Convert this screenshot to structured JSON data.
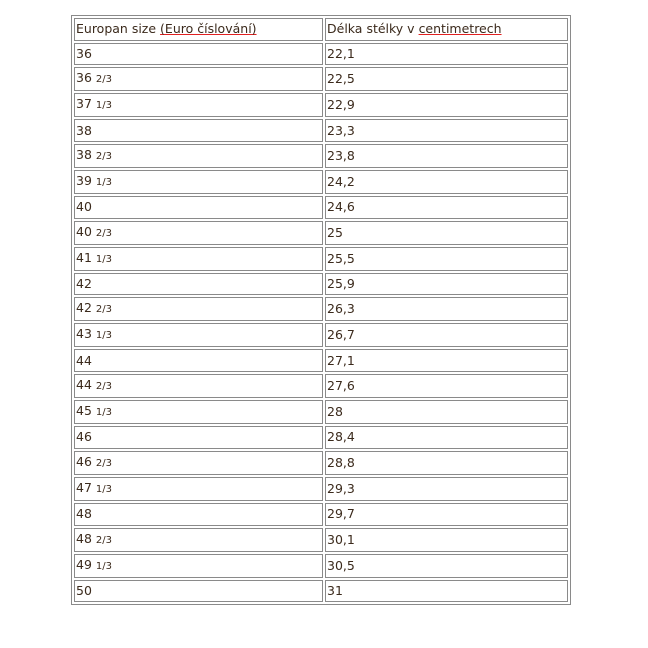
{
  "header": {
    "col1_text": "Europan size ",
    "col1_link": "(Euro číslování)",
    "col2_text": "Délka stélky v ",
    "col2_link": "centimetrech"
  },
  "rows": [
    {
      "size": "36",
      "frac": "",
      "cm": "22,1"
    },
    {
      "size": "36",
      "frac": "2/3",
      "cm": "22,5"
    },
    {
      "size": "37",
      "frac": "1/3",
      "cm": "22,9"
    },
    {
      "size": "38",
      "frac": "",
      "cm": "23,3"
    },
    {
      "size": "38",
      "frac": "2/3",
      "cm": "23,8"
    },
    {
      "size": "39",
      "frac": "1/3",
      "cm": "24,2"
    },
    {
      "size": "40",
      "frac": "",
      "cm": "24,6"
    },
    {
      "size": "40",
      "frac": "2/3",
      "cm": "25"
    },
    {
      "size": "41",
      "frac": "1/3",
      "cm": "25,5"
    },
    {
      "size": "42",
      "frac": "",
      "cm": "25,9"
    },
    {
      "size": "42",
      "frac": "2/3",
      "cm": "26,3"
    },
    {
      "size": "43",
      "frac": "1/3",
      "cm": "26,7"
    },
    {
      "size": "44",
      "frac": "",
      "cm": "27,1"
    },
    {
      "size": "44",
      "frac": "2/3",
      "cm": "27,6"
    },
    {
      "size": "45",
      "frac": "1/3",
      "cm": "28"
    },
    {
      "size": "46",
      "frac": "",
      "cm": "28,4"
    },
    {
      "size": "46",
      "frac": "2/3",
      "cm": "28,8"
    },
    {
      "size": "47",
      "frac": "1/3",
      "cm": "29,3"
    },
    {
      "size": "48",
      "frac": "",
      "cm": "29,7"
    },
    {
      "size": "48",
      "frac": "2/3",
      "cm": "30,1"
    },
    {
      "size": "49",
      "frac": "1/3",
      "cm": "30,5"
    },
    {
      "size": "50",
      "frac": "",
      "cm": "31"
    }
  ]
}
